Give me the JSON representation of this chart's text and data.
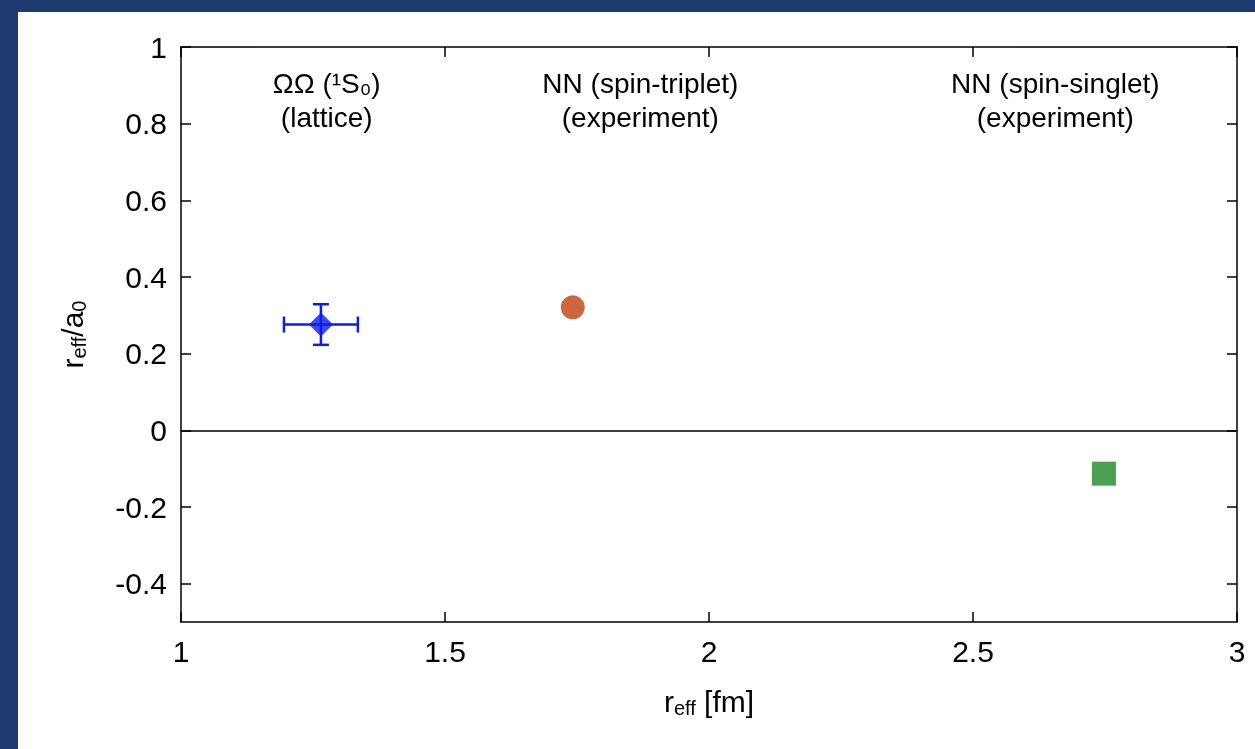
{
  "chart_data": {
    "type": "scatter",
    "xlabel": "r$_{eff}$ [fm]",
    "ylabel": "r$_{eff}$/a$_{0}$",
    "xlim": [
      1,
      3
    ],
    "xticks": [
      1,
      1.5,
      2,
      2.5,
      3
    ],
    "ylim": [
      -0.5,
      1
    ],
    "yticks": [
      -0.4,
      -0.2,
      0,
      0.2,
      0.4,
      0.6,
      0.8,
      1
    ],
    "grid": false,
    "series": [
      {
        "color": "#0a1cf0",
        "marker": "diamond",
        "x": [
          1.265
        ],
        "values": [
          0.276
        ],
        "errors": [
          0.053
        ],
        "xerrors": [
          0.07
        ]
      },
      {
        "color": "#c2410c",
        "marker": "circle",
        "x": [
          1.742
        ],
        "values": [
          0.321
        ]
      },
      {
        "color": "#1e8a25",
        "marker": "square",
        "x": [
          2.748
        ],
        "values": [
          -0.113
        ]
      }
    ],
    "ref_lines": [
      {
        "axis": "y",
        "value": 0,
        "color": "#000000"
      }
    ],
    "annotations": [
      "ΩΩ (¹S₀)\n(lattice)",
      "NN (spin-triplet)\n(experiment)",
      "NN (spin-singlet)\n(experiment)"
    ]
  }
}
